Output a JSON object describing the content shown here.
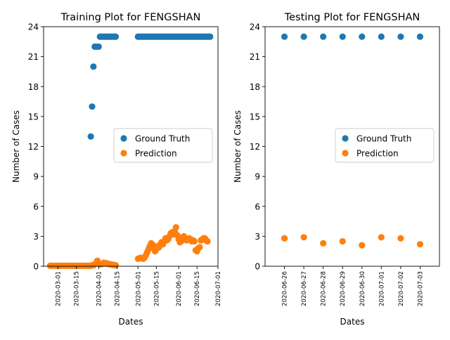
{
  "chart_data": [
    {
      "type": "scatter",
      "title": "Training Plot for FENGSHAN",
      "xlabel": "Dates",
      "ylabel": "Number of Cases",
      "x_type": "date",
      "xlim": [
        "2020-02-19",
        "2020-07-01"
      ],
      "ylim": [
        0,
        24
      ],
      "yticks": [
        0,
        3,
        6,
        9,
        12,
        15,
        18,
        21,
        24
      ],
      "xticks": [
        "2020-03-01",
        "2020-03-15",
        "2020-04-01",
        "2020-04-15",
        "2020-05-01",
        "2020-05-15",
        "2020-06-01",
        "2020-06-15",
        "2020-07-01"
      ],
      "legend_position": "center-right",
      "series": [
        {
          "name": "Ground Truth",
          "color": "#1f77b4",
          "points": [
            [
              "2020-03-26",
              13
            ],
            [
              "2020-03-27",
              16
            ],
            [
              "2020-03-28",
              20
            ],
            [
              "2020-03-29",
              22
            ],
            [
              "2020-03-30",
              22
            ],
            [
              "2020-03-31",
              22
            ],
            [
              "2020-04-01",
              22
            ],
            [
              "2020-04-02",
              23
            ],
            [
              "2020-04-03",
              23
            ],
            [
              "2020-04-04",
              23
            ],
            [
              "2020-04-05",
              23
            ],
            [
              "2020-04-06",
              23
            ],
            [
              "2020-04-07",
              23
            ],
            [
              "2020-04-08",
              23
            ],
            [
              "2020-04-09",
              23
            ],
            [
              "2020-04-10",
              23
            ],
            [
              "2020-04-11",
              23
            ],
            [
              "2020-04-12",
              23
            ],
            [
              "2020-04-13",
              23
            ],
            [
              "2020-04-14",
              23
            ],
            [
              "2020-05-01",
              23
            ],
            [
              "2020-05-02",
              23
            ],
            [
              "2020-05-03",
              23
            ],
            [
              "2020-05-04",
              23
            ],
            [
              "2020-05-05",
              23
            ],
            [
              "2020-05-06",
              23
            ],
            [
              "2020-05-07",
              23
            ],
            [
              "2020-05-08",
              23
            ],
            [
              "2020-05-09",
              23
            ],
            [
              "2020-05-10",
              23
            ],
            [
              "2020-05-11",
              23
            ],
            [
              "2020-05-12",
              23
            ],
            [
              "2020-05-13",
              23
            ],
            [
              "2020-05-14",
              23
            ],
            [
              "2020-05-15",
              23
            ],
            [
              "2020-05-16",
              23
            ],
            [
              "2020-05-17",
              23
            ],
            [
              "2020-05-18",
              23
            ],
            [
              "2020-05-19",
              23
            ],
            [
              "2020-05-20",
              23
            ],
            [
              "2020-05-21",
              23
            ],
            [
              "2020-05-22",
              23
            ],
            [
              "2020-05-23",
              23
            ],
            [
              "2020-05-24",
              23
            ],
            [
              "2020-05-25",
              23
            ],
            [
              "2020-05-26",
              23
            ],
            [
              "2020-05-27",
              23
            ],
            [
              "2020-05-28",
              23
            ],
            [
              "2020-05-29",
              23
            ],
            [
              "2020-05-30",
              23
            ],
            [
              "2020-05-31",
              23
            ],
            [
              "2020-06-01",
              23
            ],
            [
              "2020-06-02",
              23
            ],
            [
              "2020-06-03",
              23
            ],
            [
              "2020-06-04",
              23
            ],
            [
              "2020-06-05",
              23
            ],
            [
              "2020-06-06",
              23
            ],
            [
              "2020-06-07",
              23
            ],
            [
              "2020-06-08",
              23
            ],
            [
              "2020-06-09",
              23
            ],
            [
              "2020-06-10",
              23
            ],
            [
              "2020-06-11",
              23
            ],
            [
              "2020-06-12",
              23
            ],
            [
              "2020-06-13",
              23
            ],
            [
              "2020-06-14",
              23
            ],
            [
              "2020-06-15",
              23
            ],
            [
              "2020-06-16",
              23
            ],
            [
              "2020-06-17",
              23
            ],
            [
              "2020-06-18",
              23
            ],
            [
              "2020-06-19",
              23
            ],
            [
              "2020-06-20",
              23
            ],
            [
              "2020-06-21",
              23
            ],
            [
              "2020-06-22",
              23
            ],
            [
              "2020-06-23",
              23
            ],
            [
              "2020-06-24",
              23
            ],
            [
              "2020-06-25",
              23
            ]
          ]
        },
        {
          "name": "Prediction",
          "color": "#ff7f0e",
          "points": [
            [
              "2020-02-24",
              0.05
            ],
            [
              "2020-02-25",
              0.05
            ],
            [
              "2020-02-26",
              0.05
            ],
            [
              "2020-02-27",
              0.05
            ],
            [
              "2020-02-28",
              0.05
            ],
            [
              "2020-02-29",
              0.05
            ],
            [
              "2020-03-01",
              0.05
            ],
            [
              "2020-03-02",
              0.05
            ],
            [
              "2020-03-03",
              0.05
            ],
            [
              "2020-03-04",
              0.05
            ],
            [
              "2020-03-05",
              0.05
            ],
            [
              "2020-03-06",
              0.05
            ],
            [
              "2020-03-07",
              0.05
            ],
            [
              "2020-03-08",
              0.05
            ],
            [
              "2020-03-09",
              0.05
            ],
            [
              "2020-03-10",
              0.05
            ],
            [
              "2020-03-11",
              0.05
            ],
            [
              "2020-03-12",
              0.05
            ],
            [
              "2020-03-13",
              0.05
            ],
            [
              "2020-03-14",
              0.05
            ],
            [
              "2020-03-15",
              0.05
            ],
            [
              "2020-03-16",
              0.05
            ],
            [
              "2020-03-17",
              0.05
            ],
            [
              "2020-03-18",
              0.05
            ],
            [
              "2020-03-19",
              0.05
            ],
            [
              "2020-03-20",
              0.05
            ],
            [
              "2020-03-21",
              0.05
            ],
            [
              "2020-03-22",
              0.05
            ],
            [
              "2020-03-23",
              0.05
            ],
            [
              "2020-03-24",
              0.05
            ],
            [
              "2020-03-25",
              0.05
            ],
            [
              "2020-03-26",
              0.05
            ],
            [
              "2020-03-27",
              0.1
            ],
            [
              "2020-03-28",
              0.1
            ],
            [
              "2020-03-29",
              0.2
            ],
            [
              "2020-03-30",
              0.3
            ],
            [
              "2020-03-31",
              0.55
            ],
            [
              "2020-04-01",
              0.3
            ],
            [
              "2020-04-02",
              0.2
            ],
            [
              "2020-04-03",
              0.2
            ],
            [
              "2020-04-04",
              0.25
            ],
            [
              "2020-04-05",
              0.35
            ],
            [
              "2020-04-06",
              0.3
            ],
            [
              "2020-04-07",
              0.3
            ],
            [
              "2020-04-08",
              0.25
            ],
            [
              "2020-04-09",
              0.2
            ],
            [
              "2020-04-10",
              0.2
            ],
            [
              "2020-04-11",
              0.15
            ],
            [
              "2020-04-12",
              0.15
            ],
            [
              "2020-04-13",
              0.1
            ],
            [
              "2020-04-14",
              0.1
            ],
            [
              "2020-05-01",
              0.75
            ],
            [
              "2020-05-02",
              0.8
            ],
            [
              "2020-05-03",
              0.85
            ],
            [
              "2020-05-04",
              0.8
            ],
            [
              "2020-05-05",
              0.75
            ],
            [
              "2020-05-06",
              0.85
            ],
            [
              "2020-05-07",
              1.1
            ],
            [
              "2020-05-08",
              1.4
            ],
            [
              "2020-05-09",
              1.7
            ],
            [
              "2020-05-10",
              2.0
            ],
            [
              "2020-05-11",
              2.3
            ],
            [
              "2020-05-12",
              2.2
            ],
            [
              "2020-05-13",
              1.8
            ],
            [
              "2020-05-14",
              1.5
            ],
            [
              "2020-05-15",
              1.7
            ],
            [
              "2020-05-16",
              2.0
            ],
            [
              "2020-05-17",
              1.9
            ],
            [
              "2020-05-18",
              2.2
            ],
            [
              "2020-05-19",
              2.4
            ],
            [
              "2020-05-20",
              2.2
            ],
            [
              "2020-05-21",
              2.5
            ],
            [
              "2020-05-22",
              2.8
            ],
            [
              "2020-05-23",
              2.6
            ],
            [
              "2020-05-24",
              2.7
            ],
            [
              "2020-05-25",
              3.0
            ],
            [
              "2020-05-26",
              3.3
            ],
            [
              "2020-05-27",
              3.4
            ],
            [
              "2020-05-28",
              3.2
            ],
            [
              "2020-05-29",
              3.5
            ],
            [
              "2020-05-30",
              3.9
            ],
            [
              "2020-05-31",
              3.1
            ],
            [
              "2020-06-01",
              2.7
            ],
            [
              "2020-06-02",
              2.4
            ],
            [
              "2020-06-03",
              2.5
            ],
            [
              "2020-06-04",
              2.9
            ],
            [
              "2020-06-05",
              3.0
            ],
            [
              "2020-06-06",
              2.8
            ],
            [
              "2020-06-07",
              2.6
            ],
            [
              "2020-06-08",
              2.7
            ],
            [
              "2020-06-09",
              2.8
            ],
            [
              "2020-06-10",
              2.7
            ],
            [
              "2020-06-11",
              2.5
            ],
            [
              "2020-06-12",
              2.6
            ],
            [
              "2020-06-13",
              2.5
            ],
            [
              "2020-06-14",
              1.6
            ],
            [
              "2020-06-15",
              1.5
            ],
            [
              "2020-06-16",
              1.8
            ],
            [
              "2020-06-17",
              1.9
            ],
            [
              "2020-06-18",
              2.6
            ],
            [
              "2020-06-19",
              2.7
            ],
            [
              "2020-06-20",
              2.8
            ],
            [
              "2020-06-21",
              2.8
            ],
            [
              "2020-06-22",
              2.6
            ],
            [
              "2020-06-23",
              2.5
            ]
          ]
        }
      ]
    },
    {
      "type": "scatter",
      "title": "Testing Plot for FENGSHAN",
      "xlabel": "Dates",
      "ylabel": "Number of Cases",
      "x_type": "date",
      "xlim": [
        "2020-06-25",
        "2020-07-04"
      ],
      "ylim": [
        0,
        24
      ],
      "yticks": [
        0,
        3,
        6,
        9,
        12,
        15,
        18,
        21,
        24
      ],
      "xticks": [
        "2020-06-26",
        "2020-06-27",
        "2020-06-28",
        "2020-06-29",
        "2020-06-30",
        "2020-07-01",
        "2020-07-02",
        "2020-07-03"
      ],
      "legend_position": "center-right",
      "series": [
        {
          "name": "Ground Truth",
          "color": "#1f77b4",
          "points": [
            [
              "2020-06-26",
              23
            ],
            [
              "2020-06-27",
              23
            ],
            [
              "2020-06-28",
              23
            ],
            [
              "2020-06-29",
              23
            ],
            [
              "2020-06-30",
              23
            ],
            [
              "2020-07-01",
              23
            ],
            [
              "2020-07-02",
              23
            ],
            [
              "2020-07-03",
              23
            ]
          ]
        },
        {
          "name": "Prediction",
          "color": "#ff7f0e",
          "points": [
            [
              "2020-06-26",
              2.8
            ],
            [
              "2020-06-27",
              2.9
            ],
            [
              "2020-06-28",
              2.3
            ],
            [
              "2020-06-29",
              2.5
            ],
            [
              "2020-06-30",
              2.1
            ],
            [
              "2020-07-01",
              2.9
            ],
            [
              "2020-07-02",
              2.8
            ],
            [
              "2020-07-03",
              2.2
            ]
          ]
        }
      ]
    }
  ]
}
